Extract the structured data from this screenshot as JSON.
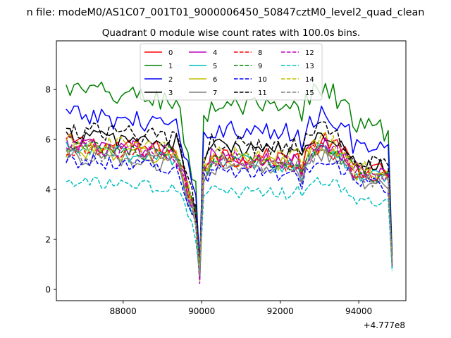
{
  "figure": {
    "suptitle": "n file: modeM0/AS1C07_001T01_9000006450_50847cztM0_level2_quad_clean",
    "title": "Quadrant 0 module wise count rates with 100.0s bins.",
    "offset_label": "+4.777e8"
  },
  "chart_data": {
    "type": "line",
    "title": "Quadrant 0 module wise count rates with 100.0s bins.",
    "xlabel": "",
    "ylabel": "",
    "x_offset": 477700000,
    "xlim": [
      86300,
      95200
    ],
    "ylim": [
      -0.45,
      9.95
    ],
    "xticks": [
      88000,
      90000,
      92000,
      94000
    ],
    "xtick_labels": [
      "88000",
      "90000",
      "92000",
      "94000"
    ],
    "yticks": [
      0,
      2,
      4,
      6,
      8
    ],
    "ytick_labels": [
      "0",
      "2",
      "4",
      "6",
      "8"
    ],
    "grid": false,
    "legend": {
      "placement": "top-center",
      "ncol": 4
    },
    "x_start": 86550,
    "x_step": 100,
    "n_points": 84,
    "shape": {
      "dip_x": 89950,
      "dip_min_factor": 0.02,
      "step_x": 92550,
      "step_factor": 0.88,
      "hump_x": 93150,
      "end_x": 94850,
      "end_value_factor": 0.17
    },
    "series": [
      {
        "name": "0",
        "color": "#ff0000",
        "dash": "solid",
        "level": 5.9
      },
      {
        "name": "1",
        "color": "#008000",
        "dash": "solid",
        "level": 8.0
      },
      {
        "name": "2",
        "color": "#0000ff",
        "dash": "solid",
        "level": 7.0
      },
      {
        "name": "3",
        "color": "#000000",
        "dash": "solid",
        "level": 6.2
      },
      {
        "name": "4",
        "color": "#bf00bf",
        "dash": "solid",
        "level": 5.8
      },
      {
        "name": "5",
        "color": "#00bfbf",
        "dash": "solid",
        "level": 5.6
      },
      {
        "name": "6",
        "color": "#bfbf00",
        "dash": "solid",
        "level": 5.6
      },
      {
        "name": "7",
        "color": "#808080",
        "dash": "solid",
        "level": 5.3
      },
      {
        "name": "8",
        "color": "#ff0000",
        "dash": "dashed",
        "level": 5.6
      },
      {
        "name": "9",
        "color": "#008000",
        "dash": "dashed",
        "level": 5.7
      },
      {
        "name": "10",
        "color": "#0000ff",
        "dash": "dashed",
        "level": 5.2
      },
      {
        "name": "11",
        "color": "#000000",
        "dash": "dashed",
        "level": 6.4
      },
      {
        "name": "12",
        "color": "#bf00bf",
        "dash": "dashed",
        "level": 5.7
      },
      {
        "name": "13",
        "color": "#00bfbf",
        "dash": "dashed",
        "level": 4.3
      },
      {
        "name": "14",
        "color": "#bfbf00",
        "dash": "dashed",
        "level": 5.9
      },
      {
        "name": "15",
        "color": "#808080",
        "dash": "dashed",
        "level": 5.5
      }
    ]
  }
}
